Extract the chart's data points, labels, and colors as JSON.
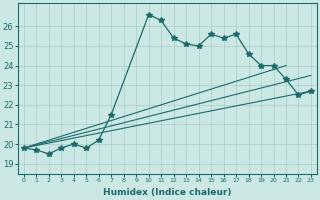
{
  "xlabel": "Humidex (Indice chaleur)",
  "background_color": "#cce8e4",
  "grid_color": "#aaccca",
  "line_color": "#1a6b6b",
  "xlim": [
    -0.5,
    23.5
  ],
  "ylim": [
    18.5,
    27.2
  ],
  "xticks": [
    0,
    1,
    2,
    3,
    4,
    5,
    6,
    7,
    8,
    9,
    10,
    11,
    12,
    13,
    14,
    15,
    16,
    17,
    18,
    19,
    20,
    21,
    22,
    23
  ],
  "yticks": [
    19,
    20,
    21,
    22,
    23,
    24,
    25,
    26
  ],
  "main_x": [
    0,
    1,
    2,
    3,
    4,
    5,
    6,
    7,
    10,
    11,
    12,
    13,
    14,
    15,
    16,
    17,
    18,
    19,
    20,
    21,
    22,
    23
  ],
  "main_y": [
    19.8,
    19.7,
    19.5,
    19.8,
    20.0,
    19.8,
    20.2,
    21.5,
    26.6,
    26.3,
    25.4,
    25.1,
    25.0,
    25.6,
    25.4,
    25.6,
    24.6,
    24.0,
    24.0,
    23.3,
    22.5,
    22.7
  ],
  "trend1_x": [
    0,
    23
  ],
  "trend1_y": [
    19.8,
    22.7
  ],
  "trend2_x": [
    0,
    23
  ],
  "trend2_y": [
    19.8,
    23.5
  ],
  "trend3_x": [
    0,
    21
  ],
  "trend3_y": [
    19.8,
    24.0
  ]
}
